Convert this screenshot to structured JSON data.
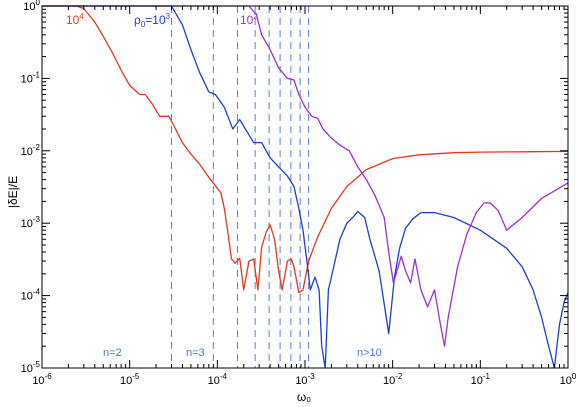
{
  "chart_data": {
    "type": "line",
    "title": "",
    "xlabel": "ω₀",
    "ylabel": "|δE|/E",
    "xscale": "log",
    "yscale": "log",
    "xlim": [
      1e-06,
      1
    ],
    "ylim": [
      1e-05,
      1
    ],
    "grid": false,
    "x_ticks": [
      {
        "value": 1e-06,
        "base": "10",
        "exp": "-6"
      },
      {
        "value": 1e-05,
        "base": "10",
        "exp": "-5"
      },
      {
        "value": 0.0001,
        "base": "10",
        "exp": "-4"
      },
      {
        "value": 0.001,
        "base": "10",
        "exp": "-3"
      },
      {
        "value": 0.01,
        "base": "10",
        "exp": "-2"
      },
      {
        "value": 0.1,
        "base": "10",
        "exp": "-1"
      },
      {
        "value": 1,
        "base": "10",
        "exp": "0"
      }
    ],
    "y_ticks": [
      {
        "value": 1e-05,
        "base": "10",
        "exp": "-5"
      },
      {
        "value": 0.0001,
        "base": "10",
        "exp": "-4"
      },
      {
        "value": 0.001,
        "base": "10",
        "exp": "-3"
      },
      {
        "value": 0.01,
        "base": "10",
        "exp": "-2"
      },
      {
        "value": 0.1,
        "base": "10",
        "exp": "-1"
      },
      {
        "value": 1,
        "base": "10",
        "exp": "0"
      }
    ],
    "series": [
      {
        "label_base": "10",
        "label_exp": "4",
        "color": "#e8381a",
        "x": [
          1e-06,
          2.5e-06,
          3e-06,
          4e-06,
          5e-06,
          6.3e-06,
          8e-06,
          1e-05,
          1.3e-05,
          1.5e-05,
          1.8e-05,
          2.2e-05,
          2.8e-05,
          3.2e-05,
          4e-05,
          5e-05,
          6.3e-05,
          8e-05,
          9.5e-05,
          0.00011,
          0.00012,
          0.00013,
          0.000145,
          0.00016,
          0.00018,
          0.0002,
          0.00023,
          0.00026,
          0.00029,
          0.00032,
          0.00036,
          0.0004,
          0.00045,
          0.0005,
          0.00055,
          0.00063,
          0.0007,
          0.00075,
          0.00085,
          0.00095,
          0.0011,
          0.0014,
          0.002,
          0.003,
          0.005,
          0.01,
          0.02,
          0.05,
          0.1,
          0.3,
          1
        ],
        "y": [
          1,
          1,
          0.92,
          0.6,
          0.38,
          0.23,
          0.13,
          0.08,
          0.06,
          0.06,
          0.045,
          0.03,
          0.03,
          0.022,
          0.013,
          0.009,
          0.0065,
          0.0043,
          0.0033,
          0.0026,
          0.0016,
          0.00085,
          0.00032,
          0.00028,
          0.00033,
          0.00012,
          0.0003,
          0.00032,
          0.00012,
          0.00046,
          0.00075,
          0.00095,
          0.0006,
          0.00022,
          0.00012,
          0.0003,
          0.00032,
          0.00025,
          0.00011,
          0.00012,
          0.0003,
          0.00065,
          0.0016,
          0.0032,
          0.0055,
          0.0078,
          0.0088,
          0.0094,
          0.0096,
          0.0097,
          0.0098
        ]
      },
      {
        "label_base": "ρ",
        "label_sub": "0",
        "label_eq": "=10",
        "label_exp": "3",
        "color": "#1a3fd6",
        "x": [
          1e-06,
          2e-05,
          3e-05,
          4e-05,
          5e-05,
          6.3e-05,
          8e-05,
          9.5e-05,
          0.00012,
          0.00015,
          0.00018,
          0.00022,
          0.00026,
          0.00032,
          0.0004,
          0.0005,
          0.00063,
          0.00075,
          0.00085,
          0.00095,
          0.00105,
          0.00115,
          0.0013,
          0.00145,
          0.00155,
          0.0017,
          0.00185,
          0.002,
          0.0022,
          0.0025,
          0.003,
          0.0035,
          0.004,
          0.0048,
          0.0055,
          0.007,
          0.009,
          0.0105,
          0.012,
          0.014,
          0.017,
          0.021,
          0.03,
          0.05,
          0.1,
          0.2,
          0.3,
          0.4,
          0.5,
          0.6,
          0.7,
          0.8,
          0.9,
          1
        ],
        "y": [
          1,
          1,
          1,
          0.55,
          0.25,
          0.12,
          0.065,
          0.06,
          0.04,
          0.02,
          0.027,
          0.018,
          0.013,
          0.013,
          0.008,
          0.006,
          0.0045,
          0.0032,
          0.0016,
          0.0008,
          0.0003,
          0.00012,
          0.00018,
          0.00012,
          2e-05,
          9e-06,
          0.00012,
          0.00018,
          0.0003,
          0.0006,
          0.001,
          0.0012,
          0.00145,
          0.0012,
          0.0006,
          0.00022,
          3e-05,
          0.00018,
          0.00045,
          0.00085,
          0.00115,
          0.0014,
          0.0014,
          0.0012,
          0.0008,
          0.00045,
          0.00025,
          0.00012,
          5e-05,
          2e-05,
          9e-06,
          4e-05,
          8e-05,
          0.00011
        ]
      },
      {
        "label_base": "10",
        "label_exp": "2",
        "color": "#9b30d8",
        "x": [
          1e-06,
          0.00023,
          0.00028,
          0.00032,
          0.0004,
          0.0005,
          0.00063,
          0.00075,
          0.00085,
          0.001,
          0.0012,
          0.0014,
          0.0016,
          0.002,
          0.0025,
          0.0032,
          0.004,
          0.005,
          0.0063,
          0.008,
          0.009,
          0.0102,
          0.0112,
          0.0125,
          0.014,
          0.016,
          0.018,
          0.021,
          0.025,
          0.03,
          0.035,
          0.039,
          0.043,
          0.055,
          0.07,
          0.09,
          0.11,
          0.13,
          0.16,
          0.2,
          0.3,
          0.5,
          1
        ],
        "y": [
          1,
          1,
          0.75,
          0.4,
          0.25,
          0.14,
          0.1,
          0.095,
          0.06,
          0.04,
          0.03,
          0.028,
          0.02,
          0.015,
          0.012,
          0.01,
          0.006,
          0.004,
          0.0024,
          0.0012,
          0.0004,
          0.00015,
          0.00022,
          0.00035,
          0.00022,
          0.00015,
          0.00032,
          0.00012,
          7e-05,
          0.00012,
          4e-05,
          2e-05,
          5e-05,
          0.00025,
          0.0007,
          0.0014,
          0.0019,
          0.0019,
          0.0015,
          0.0008,
          0.0012,
          0.0022,
          0.0036
        ]
      }
    ],
    "vlines": [
      3e-05,
      9e-05,
      0.00017,
      0.00027,
      0.00039,
      0.00052,
      0.00069,
      0.00088,
      0.0011
    ],
    "vline_color": "#5b7fd4",
    "region_labels": [
      "n=2",
      "n=3",
      "n>10"
    ]
  }
}
